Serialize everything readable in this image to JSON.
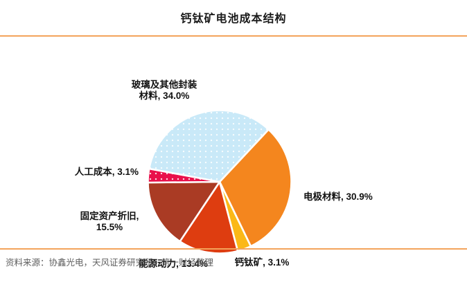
{
  "title": "钙钛矿电池成本结构",
  "source_note": "资料来源：协鑫光电，天风证券研究所，第一财经整理",
  "colors": {
    "divider": "#F3A35B",
    "title_text": "#1A1A1A",
    "label_text": "#111111",
    "source_text": "#5E5E5E",
    "slice_separator": "#FFFFFF"
  },
  "chart_data": {
    "type": "pie",
    "title": "钙钛矿电池成本结构",
    "start_angle_deg": 43,
    "legend_position": "none",
    "grid": false,
    "slices": [
      {
        "name": "电极材料",
        "value": 30.9,
        "color": "#F4861E",
        "dotted": false,
        "label": "电极材料, 30.9%"
      },
      {
        "name": "钙钛矿",
        "value": 3.1,
        "color": "#FBB817",
        "dotted": false,
        "label": "钙钛矿, 3.1%"
      },
      {
        "name": "能源动力",
        "value": 13.4,
        "color": "#DE3D10",
        "dotted": false,
        "label": "能源动力, 13.4%"
      },
      {
        "name": "固定资产折旧",
        "value": 15.5,
        "color": "#AA3B24",
        "dotted": false,
        "label": "固定资产折旧, 15.5%"
      },
      {
        "name": "人工成本",
        "value": 3.1,
        "color": "#E9104B",
        "dotted": true,
        "label": "人工成本, 3.1%"
      },
      {
        "name": "玻璃及其他封装材料",
        "value": 34.0,
        "color": "#C9E9F8",
        "dotted": true,
        "label": "玻璃及其他封装材料, 34.0%"
      }
    ],
    "labels": {
      "glass_line1": "玻璃及其他封装",
      "glass_line2": "材料, 34.0%",
      "labor": "人工成本, 3.1%",
      "fixed_line1": "固定资产折旧,",
      "fixed_line2": "15.5%",
      "energy": "能源动力, 13.4%",
      "perovskite": "钙钛矿, 3.1%",
      "electrode": "电极材料, 30.9%"
    }
  }
}
